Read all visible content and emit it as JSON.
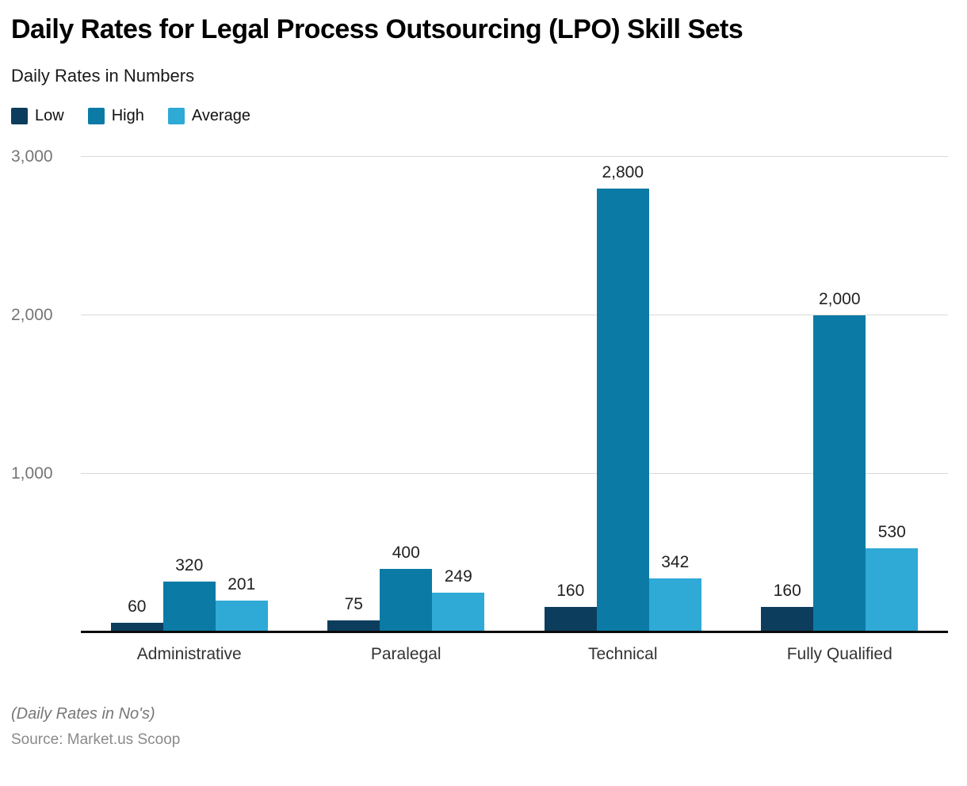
{
  "title": "Daily Rates for Legal Process Outsourcing (LPO) Skill Sets",
  "subtitle": "Daily Rates in Numbers",
  "legend": [
    {
      "label": "Low",
      "color": "#0d3d5c"
    },
    {
      "label": "High",
      "color": "#0b7ba6"
    },
    {
      "label": "Average",
      "color": "#2fa9d6"
    }
  ],
  "footer": {
    "note": "(Daily Rates in No's)",
    "source": "Source: Market.us Scoop"
  },
  "chart_data": {
    "type": "bar",
    "title": "Daily Rates for Legal Process Outsourcing (LPO) Skill Sets",
    "subtitle": "Daily Rates in Numbers",
    "categories": [
      "Administrative",
      "Paralegal",
      "Technical",
      "Fully Qualified"
    ],
    "series": [
      {
        "name": "Low",
        "color": "#0d3d5c",
        "values": [
          60,
          75,
          160,
          160
        ]
      },
      {
        "name": "High",
        "color": "#0b7ba6",
        "values": [
          320,
          400,
          2800,
          2000
        ]
      },
      {
        "name": "Average",
        "color": "#2fa9d6",
        "values": [
          201,
          249,
          342,
          530
        ]
      }
    ],
    "xlabel": "",
    "ylabel": "",
    "ylim": [
      0,
      3000
    ],
    "yticks": [
      1000,
      2000,
      3000
    ],
    "grid": true,
    "legend_position": "top-left",
    "unit_note": "(Daily Rates in No's)",
    "source": "Source: Market.us Scoop"
  }
}
